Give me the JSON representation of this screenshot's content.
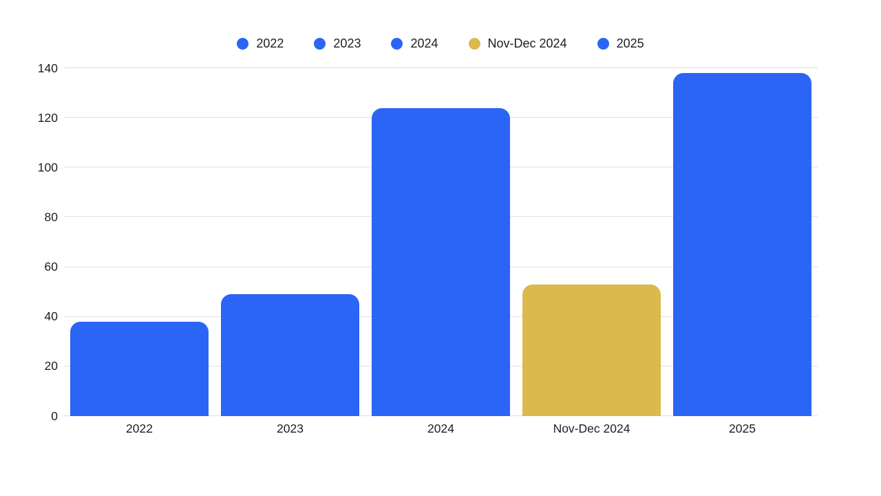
{
  "colors": {
    "bar_blue": "#2a65f6",
    "bar_gold": "#dbb94d",
    "gridline": "#dedede",
    "text": "#1e1e1e",
    "background": "#ffffff"
  },
  "chart_data": {
    "type": "bar",
    "title": "",
    "xlabel": "",
    "ylabel": "",
    "categories": [
      "2022",
      "2023",
      "2024",
      "Nov-Dec 2024",
      "2025"
    ],
    "values": [
      38,
      49,
      124,
      53,
      138
    ],
    "bar_colors": [
      "#2a65f6",
      "#2a65f6",
      "#2a65f6",
      "#dbb94d",
      "#2a65f6"
    ],
    "legend": [
      {
        "label": "2022",
        "color": "#2a65f6"
      },
      {
        "label": "2023",
        "color": "#2a65f6"
      },
      {
        "label": "2024",
        "color": "#2a65f6"
      },
      {
        "label": "Nov-Dec 2024",
        "color": "#dbb94d"
      },
      {
        "label": "2025",
        "color": "#2a65f6"
      }
    ],
    "yticks": [
      "0",
      "20",
      "40",
      "60",
      "80",
      "100",
      "120",
      "140"
    ],
    "ytick_values": [
      0,
      20,
      40,
      60,
      80,
      100,
      120,
      140
    ],
    "ylim": [
      0,
      140
    ],
    "grid": true,
    "legend_position": "top-center"
  }
}
